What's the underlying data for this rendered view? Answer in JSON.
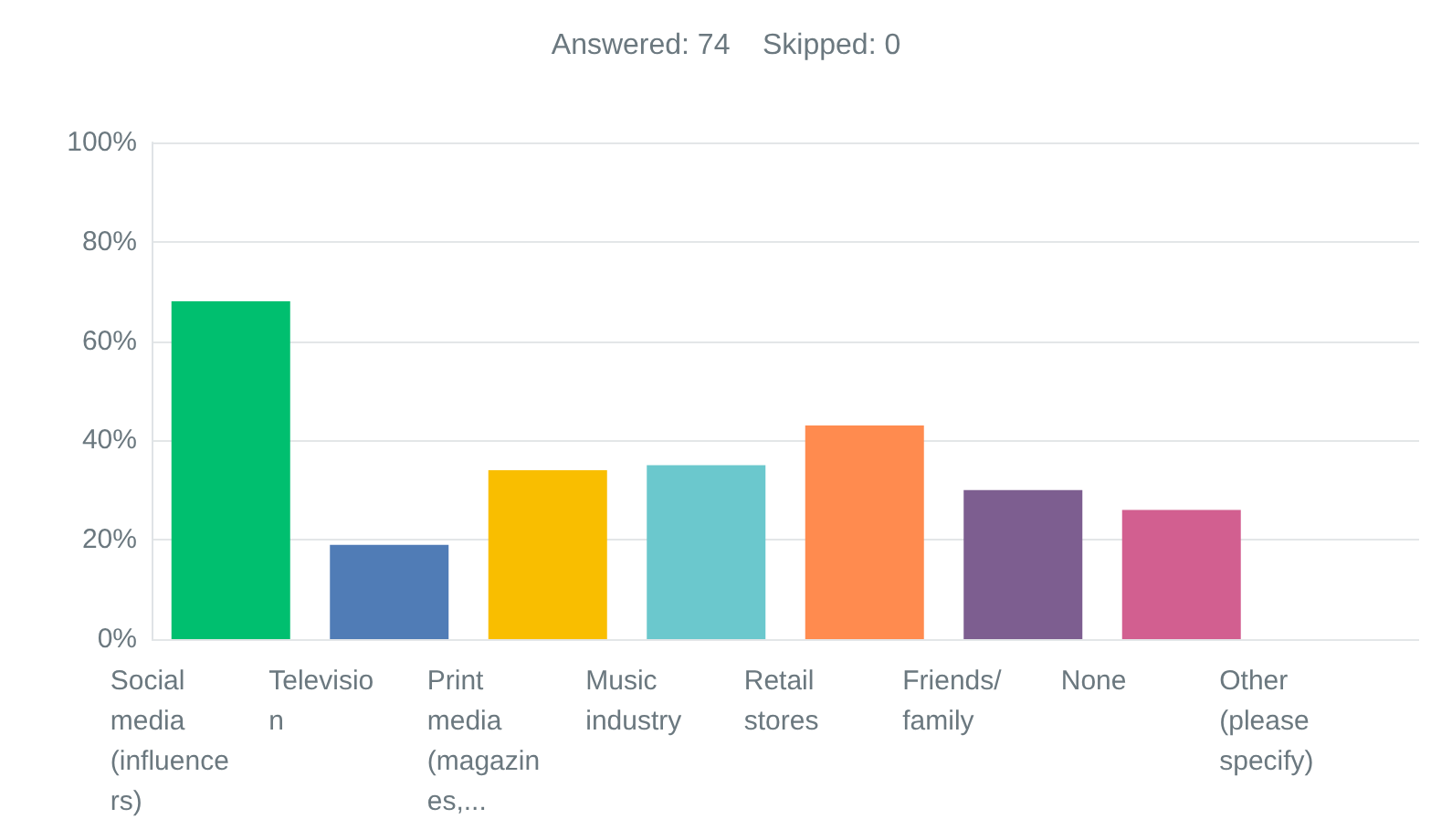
{
  "chart_data": {
    "type": "bar",
    "title": "Answered: 74    Skipped: 0",
    "categories": [
      "Social media (influencers)",
      "Television",
      "Print media (magazines,...",
      "Music industry",
      "Retail stores",
      "Friends/ family",
      "None",
      "Other (please specify)"
    ],
    "values": [
      68,
      19,
      34,
      35,
      43,
      30,
      26,
      0
    ],
    "colors": [
      "#00bf6f",
      "#507cb6",
      "#f9be00",
      "#6bc8cd",
      "#ff8b4f",
      "#7d5e90",
      "#d25f90",
      "#b0b0b0"
    ],
    "ylim": [
      0,
      100
    ],
    "yticks": [
      {
        "value": 0,
        "label": "0%"
      },
      {
        "value": 20,
        "label": "20%"
      },
      {
        "value": 40,
        "label": "40%"
      },
      {
        "value": 60,
        "label": "60%"
      },
      {
        "value": 80,
        "label": "80%"
      },
      {
        "value": 100,
        "label": "100%"
      }
    ],
    "grid": "y"
  }
}
